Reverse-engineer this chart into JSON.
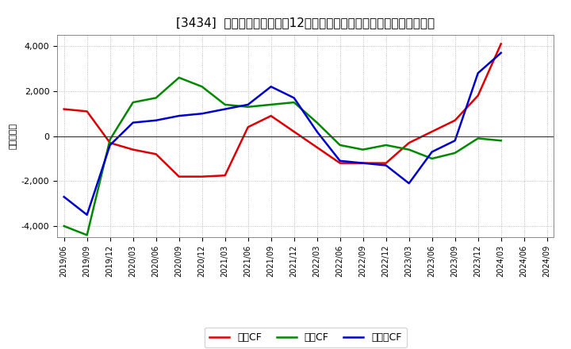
{
  "title": "[3434]  キャッシュフローの12か月移動合計の対前年同期増減額の推移",
  "ylabel": "（百万円）",
  "grid_color": "#aaaaaa",
  "x_labels": [
    "2019/06",
    "2019/09",
    "2019/12",
    "2020/03",
    "2020/06",
    "2020/09",
    "2020/12",
    "2021/03",
    "2021/06",
    "2021/09",
    "2021/12",
    "2022/03",
    "2022/06",
    "2022/09",
    "2022/12",
    "2023/03",
    "2023/06",
    "2023/09",
    "2023/12",
    "2024/03",
    "2024/06",
    "2024/09"
  ],
  "operating_cf": [
    1200,
    1100,
    -300,
    -600,
    -800,
    -1800,
    -1800,
    -1750,
    400,
    900,
    200,
    -500,
    -1200,
    -1200,
    -1200,
    -300,
    200,
    700,
    1800,
    4100,
    null,
    null
  ],
  "investing_cf": [
    -4000,
    -4400,
    -150,
    1500,
    1700,
    2600,
    2200,
    1400,
    1300,
    1400,
    1500,
    600,
    -400,
    -600,
    -400,
    -600,
    -1000,
    -750,
    -100,
    -200,
    null,
    null
  ],
  "free_cf": [
    -2700,
    -3500,
    -400,
    600,
    700,
    900,
    1000,
    1200,
    1400,
    2200,
    1700,
    200,
    -1100,
    -1200,
    -1300,
    -2100,
    -700,
    -200,
    2800,
    3700,
    null,
    null
  ],
  "series_colors": {
    "operating": "#dd0000",
    "investing": "#008800",
    "free": "#0000cc"
  },
  "series_labels": {
    "operating": "営業CF",
    "investing": "投資CF",
    "free": "フリーCF"
  },
  "ylim": [
    -4500,
    4500
  ],
  "yticks": [
    -4000,
    -2000,
    0,
    2000,
    4000
  ],
  "line_width": 1.8,
  "title_fontsize": 11,
  "axis_fontsize": 8
}
